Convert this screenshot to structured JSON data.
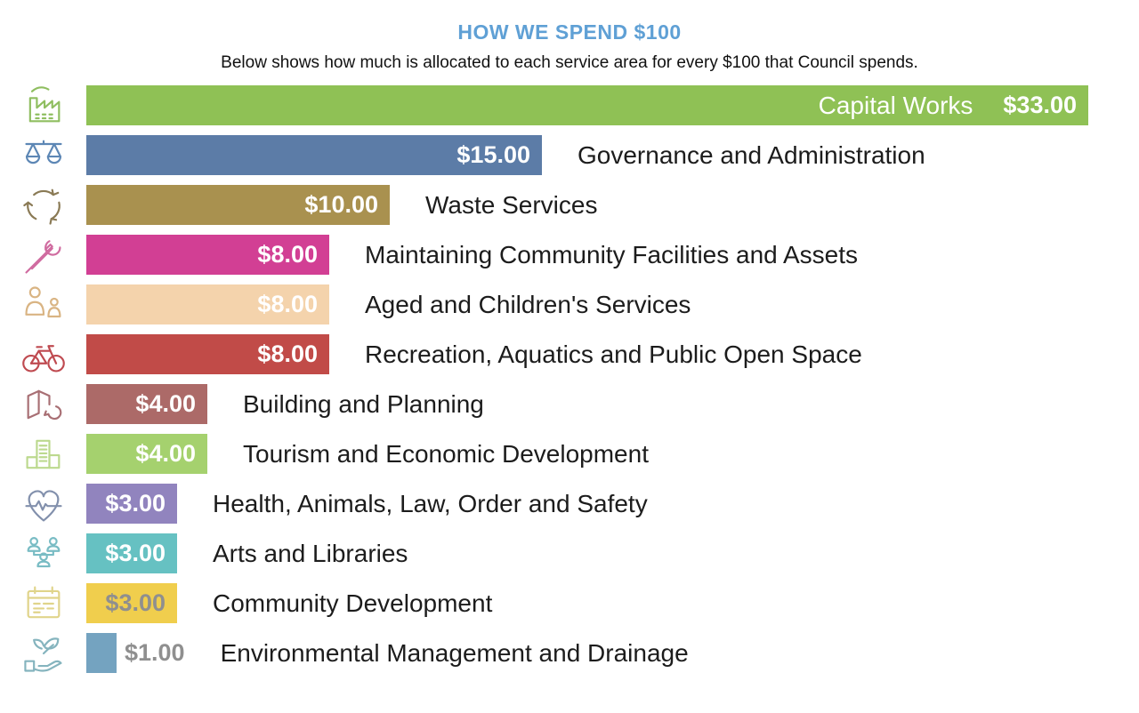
{
  "header": {
    "title": "HOW WE SPEND $100",
    "subtitle": "Below shows how much is allocated to each service area for every $100 that Council spends.",
    "title_color": "#5FA0D5"
  },
  "chart_data": {
    "type": "bar",
    "orientation": "horizontal",
    "title": "HOW WE SPEND $100",
    "subtitle": "Below shows how much is allocated to each service area for every $100 that Council spends.",
    "unit": "dollars per $100 of Council spending",
    "xlim": [
      0,
      33
    ],
    "grid": false,
    "legend": false,
    "categories": [
      "Capital Works",
      "Governance and Administration",
      "Waste Services",
      "Maintaining Community Facilities and Assets",
      "Aged and Children's Services",
      "Recreation, Aquatics and Public Open Space",
      "Building and Planning",
      "Tourism and Economic Development",
      "Health, Animals, Law, Order and Safety",
      "Arts and Libraries",
      "Community Development",
      "Environmental Management and Drainage"
    ],
    "values": [
      33,
      15,
      10,
      8,
      8,
      8,
      4,
      4,
      3,
      3,
      3,
      1
    ],
    "rows": [
      {
        "label": "Capital Works",
        "value": 33,
        "value_label": "$33.00",
        "color": "#8FC155",
        "icon": "factory",
        "icon_color": "#8FBE60",
        "label_inside": true,
        "value_inside": true,
        "value_muted": false
      },
      {
        "label": "Governance and Administration",
        "value": 15,
        "value_label": "$15.00",
        "color": "#5C7CA7",
        "icon": "scales",
        "icon_color": "#5D87B5",
        "label_inside": false,
        "value_inside": true,
        "value_muted": false
      },
      {
        "label": "Waste Services",
        "value": 10,
        "value_label": "$10.00",
        "color": "#A9914F",
        "icon": "recycle",
        "icon_color": "#8A7A55",
        "label_inside": false,
        "value_inside": true,
        "value_muted": false
      },
      {
        "label": "Maintaining Community Facilities and Assets",
        "value": 8,
        "value_label": "$8.00",
        "color": "#D23F94",
        "icon": "tools",
        "icon_color": "#D06CA0",
        "label_inside": false,
        "value_inside": true,
        "value_muted": false
      },
      {
        "label": "Aged and Children's Services",
        "value": 8,
        "value_label": "$8.00",
        "color": "#F4D3AC",
        "icon": "adult-child",
        "icon_color": "#D9B483",
        "label_inside": false,
        "value_inside": true,
        "value_muted": false
      },
      {
        "label": "Recreation, Aquatics and Public Open Space",
        "value": 8,
        "value_label": "$8.00",
        "color": "#C14B48",
        "icon": "bicycle",
        "icon_color": "#BF4A50",
        "label_inside": false,
        "value_inside": true,
        "value_muted": false
      },
      {
        "label": "Building and Planning",
        "value": 4,
        "value_label": "$4.00",
        "color": "#AC6A68",
        "icon": "map",
        "icon_color": "#A86F74",
        "label_inside": false,
        "value_inside": true,
        "value_muted": false
      },
      {
        "label": "Tourism and Economic Development",
        "value": 4,
        "value_label": "$4.00",
        "color": "#A5D16E",
        "icon": "buildings",
        "icon_color": "#BCD98E",
        "label_inside": false,
        "value_inside": true,
        "value_muted": false
      },
      {
        "label": "Health, Animals, Law, Order and Safety",
        "value": 3,
        "value_label": "$3.00",
        "color": "#9184BE",
        "icon": "heart-pulse",
        "icon_color": "#8290AC",
        "label_inside": false,
        "value_inside": true,
        "value_muted": false
      },
      {
        "label": "Arts and Libraries",
        "value": 3,
        "value_label": "$3.00",
        "color": "#66C1C2",
        "icon": "people-group",
        "icon_color": "#79BCC4",
        "label_inside": false,
        "value_inside": true,
        "value_muted": false
      },
      {
        "label": "Community Development",
        "value": 3,
        "value_label": "$3.00",
        "color": "#F0CE4D",
        "icon": "calendar",
        "icon_color": "#E0D48A",
        "label_inside": false,
        "value_inside": true,
        "value_muted": true
      },
      {
        "label": "Environmental Management and Drainage",
        "value": 1,
        "value_label": "$1.00",
        "color": "#74A3C0",
        "icon": "hand-leaves",
        "icon_color": "#85B4BE",
        "label_inside": false,
        "value_inside": false,
        "value_muted": true
      }
    ]
  }
}
